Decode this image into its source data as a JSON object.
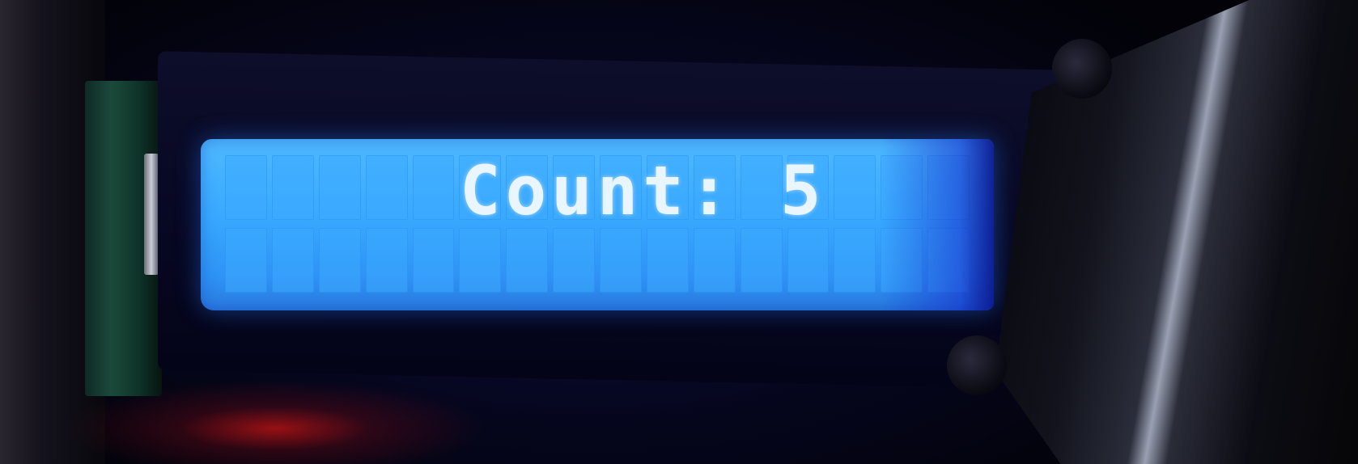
{
  "scene": {
    "description_colors": {
      "backlight": "#38a9ff",
      "text_color": "#eaf6ff",
      "bezel": "#070823",
      "red_glow": "#c81414"
    }
  },
  "lcd": {
    "line1": "Count: 5",
    "columns": 16,
    "rows": 2
  }
}
